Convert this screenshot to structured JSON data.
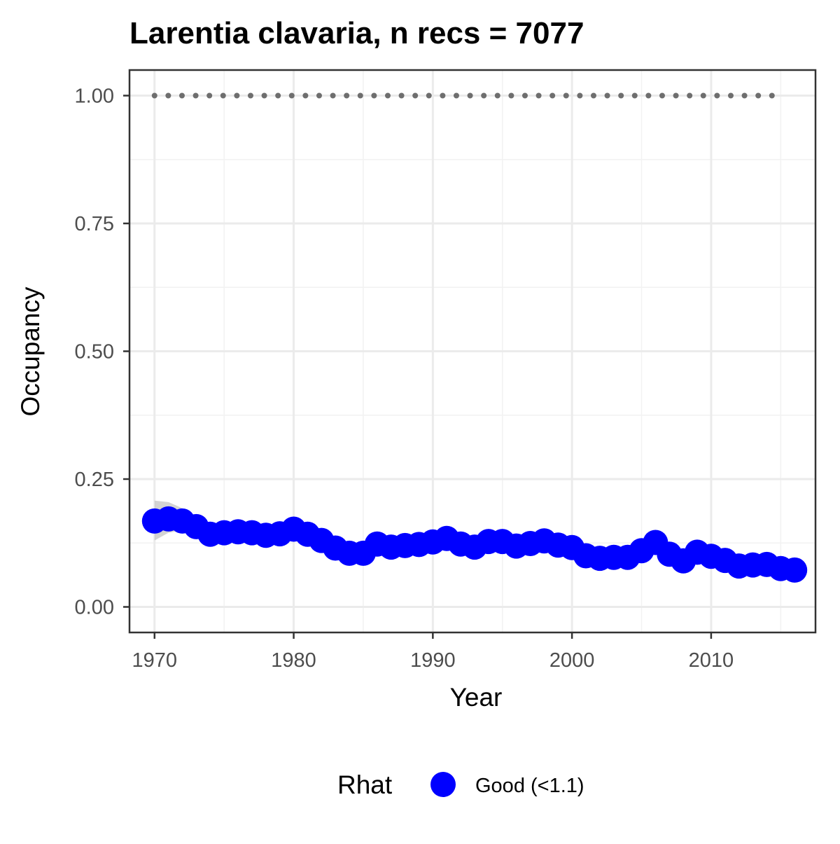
{
  "chart_data": {
    "type": "line",
    "title": "Larentia clavaria, n recs = 7077",
    "xlabel": "Year",
    "ylabel": "Occupancy",
    "xlim": [
      1968.2,
      2017.5
    ],
    "ylim": [
      -0.05,
      1.05
    ],
    "x_ticks": [
      1970,
      1980,
      1990,
      2000,
      2010
    ],
    "x_tick_labels": [
      "1970",
      "1980",
      "1990",
      "2000",
      "2010"
    ],
    "y_ticks": [
      0.0,
      0.25,
      0.5,
      0.75,
      1.0
    ],
    "y_tick_labels": [
      "0.00",
      "0.25",
      "0.50",
      "0.75",
      "1.00"
    ],
    "grid": true,
    "legend": {
      "position": "bottom",
      "title": "Rhat",
      "entries": [
        {
          "label": "Good (<1.1)",
          "color": "#0000ff"
        }
      ]
    },
    "series": [
      {
        "name": "Good (<1.1)",
        "color": "#0000ff",
        "x": [
          1970,
          1971,
          1972,
          1973,
          1974,
          1975,
          1976,
          1977,
          1978,
          1979,
          1980,
          1981,
          1982,
          1983,
          1984,
          1985,
          1986,
          1987,
          1988,
          1989,
          1990,
          1991,
          1992,
          1993,
          1994,
          1995,
          1996,
          1997,
          1998,
          1999,
          2000,
          2001,
          2002,
          2003,
          2004,
          2005,
          2006,
          2007,
          2008,
          2009,
          2010,
          2011,
          2012,
          2013,
          2014,
          2015,
          2016
        ],
        "y": [
          0.168,
          0.172,
          0.168,
          0.157,
          0.142,
          0.145,
          0.147,
          0.145,
          0.14,
          0.143,
          0.152,
          0.142,
          0.13,
          0.115,
          0.105,
          0.105,
          0.123,
          0.117,
          0.12,
          0.122,
          0.127,
          0.134,
          0.123,
          0.117,
          0.128,
          0.128,
          0.119,
          0.124,
          0.129,
          0.121,
          0.116,
          0.1,
          0.095,
          0.097,
          0.097,
          0.11,
          0.126,
          0.103,
          0.09,
          0.107,
          0.099,
          0.091,
          0.08,
          0.082,
          0.083,
          0.075,
          0.072
        ]
      }
    ],
    "ci_lower": [
      0.13,
      0.145,
      0.15,
      0.145,
      0.132,
      0.136,
      0.138,
      0.136,
      0.131,
      0.134,
      0.142,
      0.133,
      0.121,
      0.106,
      0.096,
      0.096,
      0.113,
      0.108,
      0.111,
      0.113,
      0.118,
      0.124,
      0.114,
      0.108,
      0.118,
      0.118,
      0.11,
      0.115,
      0.119,
      0.112,
      0.107,
      0.091,
      0.086,
      0.088,
      0.088,
      0.1,
      0.115,
      0.094,
      0.081,
      0.097,
      0.09,
      0.082,
      0.071,
      0.073,
      0.074,
      0.066,
      0.062
    ],
    "ci_upper": [
      0.208,
      0.205,
      0.193,
      0.172,
      0.153,
      0.155,
      0.157,
      0.155,
      0.15,
      0.153,
      0.162,
      0.152,
      0.139,
      0.124,
      0.114,
      0.114,
      0.133,
      0.127,
      0.13,
      0.132,
      0.137,
      0.144,
      0.133,
      0.127,
      0.138,
      0.138,
      0.129,
      0.134,
      0.139,
      0.131,
      0.126,
      0.109,
      0.104,
      0.106,
      0.106,
      0.12,
      0.137,
      0.112,
      0.099,
      0.117,
      0.108,
      0.1,
      0.089,
      0.091,
      0.092,
      0.084,
      0.082
    ],
    "reference_line": {
      "style": "dotted",
      "color": "#6e6e6e",
      "y": 1.0,
      "x_range": [
        1970,
        2015
      ]
    }
  }
}
